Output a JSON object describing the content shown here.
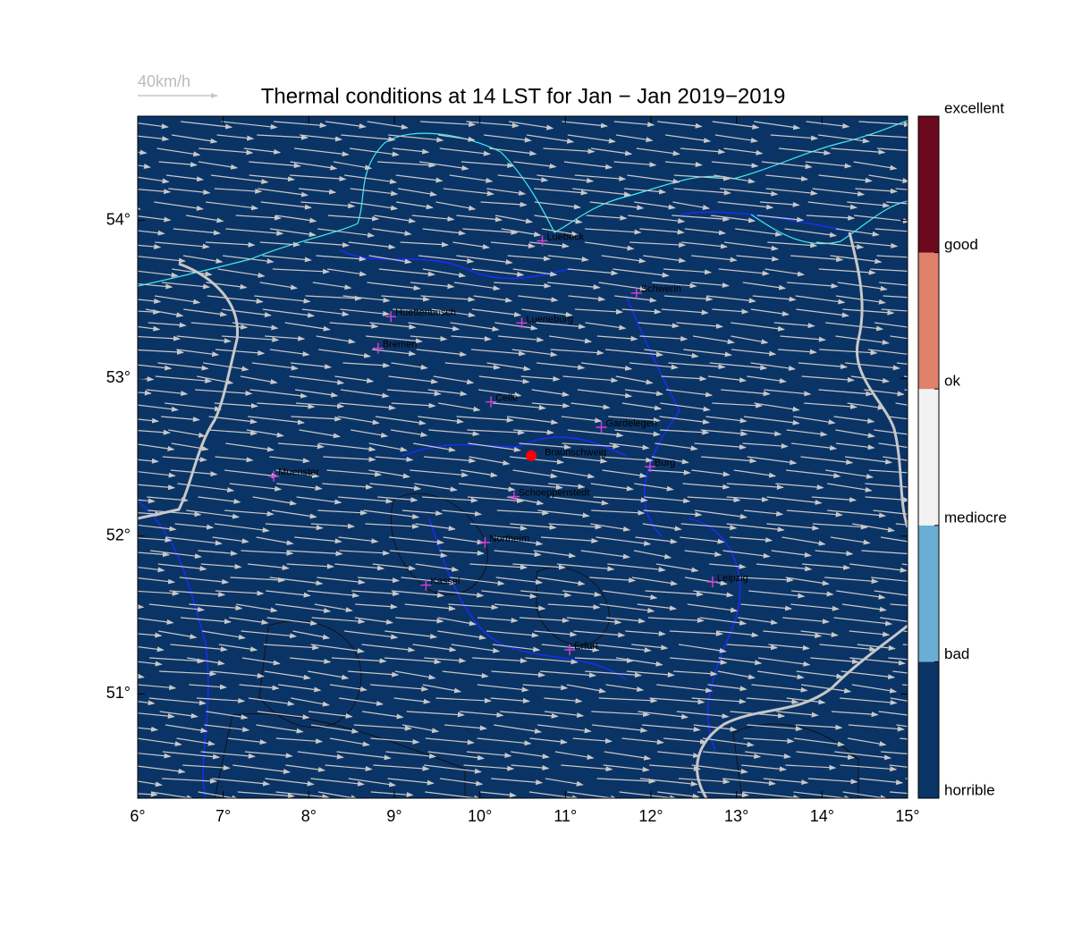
{
  "chart_data": {
    "type": "map",
    "title": "Thermal conditions at 14 LST for Jan − Jan  2019−2019",
    "wind_scale_label": "40km/h",
    "xlim": [
      6,
      15.0
    ],
    "ylim": [
      50.34,
      54.66
    ],
    "xticks": [
      {
        "value": 6,
        "label": "6°"
      },
      {
        "value": 7,
        "label": "7°"
      },
      {
        "value": 8,
        "label": "8°"
      },
      {
        "value": 9,
        "label": "9°"
      },
      {
        "value": 10,
        "label": "10°"
      },
      {
        "value": 11,
        "label": "11°"
      },
      {
        "value": 12,
        "label": "12°"
      },
      {
        "value": 13,
        "label": "13°"
      },
      {
        "value": 14,
        "label": "14°"
      },
      {
        "value": 15,
        "label": "15°"
      }
    ],
    "yticks": [
      {
        "value": 51,
        "label": "51°"
      },
      {
        "value": 52,
        "label": "52°"
      },
      {
        "value": 53,
        "label": "53°"
      },
      {
        "value": 54,
        "label": "54°"
      }
    ],
    "background_color": "#0b3466",
    "colorbar": {
      "labels": [
        "horrible",
        "bad",
        "mediocre",
        "ok",
        "good",
        "excellent"
      ],
      "colors": [
        "#0b3466",
        "#6aaed6",
        "#f2f2f2",
        "#e0826a",
        "#6b0a1e"
      ]
    },
    "site": {
      "name": "Braunschweig",
      "lon": 10.6,
      "lat": 52.51,
      "color": "#ff0000"
    },
    "cities": [
      {
        "name": "Luebeck",
        "lon": 10.73,
        "lat": 53.87
      },
      {
        "name": "Schwerin",
        "lon": 11.83,
        "lat": 53.54
      },
      {
        "name": "Huettenbusch",
        "lon": 8.96,
        "lat": 53.39
      },
      {
        "name": "Lueneburg",
        "lon": 10.49,
        "lat": 53.35
      },
      {
        "name": "Bremen",
        "lon": 8.81,
        "lat": 53.19
      },
      {
        "name": "Celle",
        "lon": 10.13,
        "lat": 52.85
      },
      {
        "name": "Gardelegen",
        "lon": 11.42,
        "lat": 52.69
      },
      {
        "name": "Burg",
        "lon": 11.99,
        "lat": 52.44
      },
      {
        "name": "Muenster",
        "lon": 7.59,
        "lat": 52.38
      },
      {
        "name": "Schoeppenstedt",
        "lon": 10.4,
        "lat": 52.25
      },
      {
        "name": "Northeim",
        "lon": 10.06,
        "lat": 51.96
      },
      {
        "name": "Kassel",
        "lon": 9.37,
        "lat": 51.69
      },
      {
        "name": "Leipzig",
        "lon": 12.72,
        "lat": 51.71
      },
      {
        "name": "Erfurt",
        "lon": 11.05,
        "lat": 51.28
      }
    ]
  }
}
